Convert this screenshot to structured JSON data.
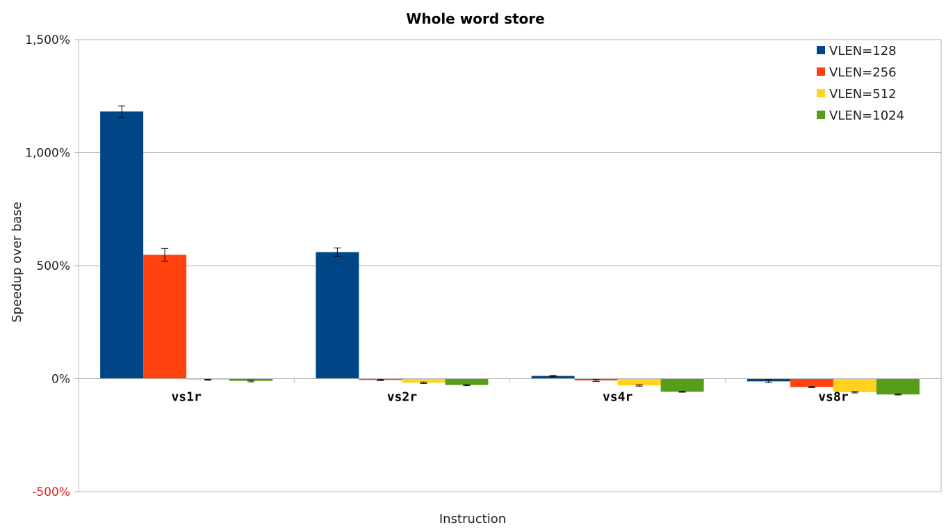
{
  "chart_data": {
    "type": "bar",
    "title": "Whole word store",
    "xlabel": "Instruction",
    "ylabel": "Speedup over base",
    "categories": [
      "vs1r",
      "vs2r",
      "vs4r",
      "vs8r"
    ],
    "ylim": [
      -500,
      1500
    ],
    "yticks": [
      {
        "value": -500,
        "label": "-500%",
        "color": "#e02020"
      },
      {
        "value": 0,
        "label": "0%",
        "color": "#222222"
      },
      {
        "value": 500,
        "label": "500%",
        "color": "#222222"
      },
      {
        "value": 1000,
        "label": "1,000%",
        "color": "#222222"
      },
      {
        "value": 1500,
        "label": "1,500%",
        "color": "#222222"
      }
    ],
    "grid": true,
    "legend_position": "top-right",
    "series": [
      {
        "name": "VLEN=128",
        "color": "#004586",
        "values": [
          1182,
          560,
          12,
          -12
        ],
        "errors": [
          25,
          18,
          3,
          6
        ]
      },
      {
        "name": "VLEN=256",
        "color": "#ff420e",
        "values": [
          548,
          -6,
          -8,
          -37
        ],
        "errors": [
          28,
          3,
          4,
          3
        ]
      },
      {
        "name": "VLEN=512",
        "color": "#ffd320",
        "values": [
          -5,
          -18,
          -30,
          -60
        ],
        "errors": [
          2,
          3,
          3,
          3
        ]
      },
      {
        "name": "VLEN=1024",
        "color": "#579d1c",
        "values": [
          -10,
          -28,
          -58,
          -70
        ],
        "errors": [
          4,
          3,
          2,
          2
        ]
      }
    ]
  }
}
